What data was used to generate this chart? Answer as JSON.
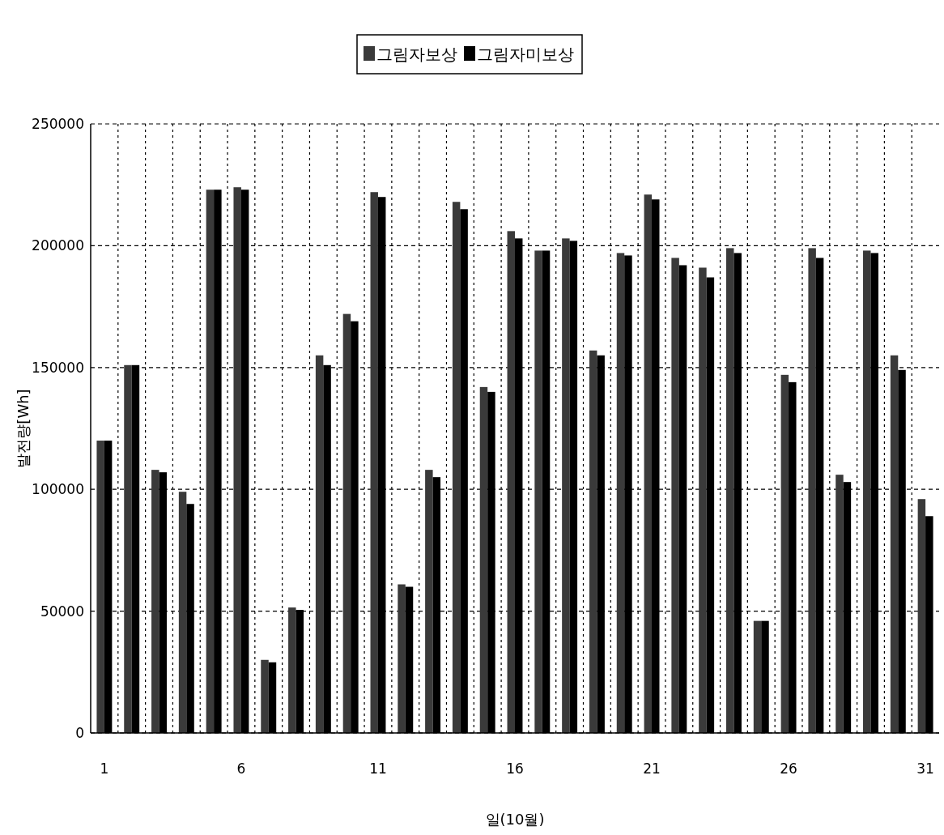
{
  "chart_data": {
    "type": "bar",
    "xlabel": "일(10월)",
    "ylabel": "발전량[Wh]",
    "categories": [
      "1",
      null,
      null,
      null,
      null,
      "6",
      null,
      null,
      null,
      null,
      "11",
      null,
      null,
      null,
      null,
      "16",
      null,
      null,
      null,
      null,
      "21",
      null,
      null,
      null,
      null,
      "26",
      null,
      null,
      null,
      null,
      "31"
    ],
    "series": [
      {
        "name": "그림자보상",
        "color": "#3a3a3a",
        "values": [
          120000,
          151000,
          108000,
          99000,
          223000,
          224000,
          30000,
          51500,
          155000,
          172000,
          222000,
          61000,
          108000,
          218000,
          142000,
          206000,
          198000,
          203000,
          157000,
          197000,
          221000,
          195000,
          191000,
          199000,
          46000,
          147000,
          199000,
          106000,
          198000,
          155000,
          96000
        ]
      },
      {
        "name": "그림자미보상",
        "color": "#000000",
        "values": [
          120000,
          151000,
          107000,
          94000,
          223000,
          223000,
          29000,
          50500,
          151000,
          169000,
          220000,
          60000,
          105000,
          215000,
          140000,
          203000,
          198000,
          202000,
          155000,
          196000,
          219000,
          192000,
          187000,
          197000,
          46000,
          144000,
          195000,
          103000,
          197000,
          149000,
          89000
        ]
      }
    ],
    "ylim": [
      0,
      250000
    ],
    "yticks": [
      0,
      50000,
      100000,
      150000,
      200000,
      250000
    ],
    "grid": true,
    "legend": "top"
  }
}
